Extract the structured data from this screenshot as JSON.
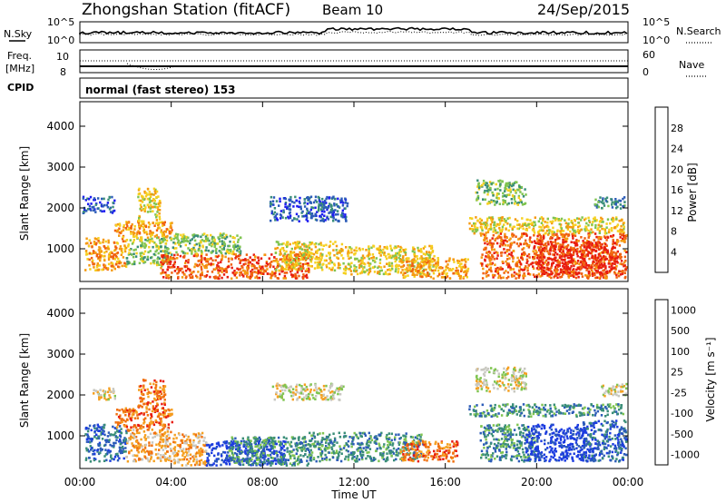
{
  "header": {
    "station": "Zhongshan Station (fitACF)",
    "beam": "Beam 10",
    "date": "24/Sep/2015",
    "cpid_label": "CPID",
    "cpid_text": "normal (fast stereo) 153"
  },
  "strips": {
    "nsky": {
      "left_label": "N.Sky",
      "right_label": "N.Search",
      "left_ticks": [
        "10^5",
        "10^0"
      ],
      "right_ticks": [
        "10^5",
        "10^0"
      ]
    },
    "freq": {
      "left_label_1": "Freq.",
      "left_label_2": "[MHz]",
      "right_label": "Nave",
      "left_ticks": [
        "10",
        "8"
      ],
      "right_ticks": [
        "60",
        "0"
      ]
    }
  },
  "chart_data": [
    {
      "type": "heatmap",
      "title": "",
      "xlabel": "Time UT",
      "ylabel": "Slant Range [km]",
      "x_ticks": [
        "00:00",
        "04:00",
        "08:00",
        "12:00",
        "16:00",
        "20:00",
        "00:00"
      ],
      "y_ticks": [
        "1000",
        "2000",
        "3000",
        "4000"
      ],
      "xlim": [
        0,
        24
      ],
      "ylim": [
        200,
        4600
      ],
      "colorbar": {
        "label": "Power [dB]",
        "ticks": [
          "4",
          "8",
          "12",
          "16",
          "20",
          "24",
          "28"
        ],
        "colors": [
          "#1c1cf0",
          "#2c5cb8",
          "#3a8e78",
          "#7fc450",
          "#f5d020",
          "#f59a10",
          "#f06010",
          "#e81c10"
        ]
      },
      "regions": [
        {
          "t0": 0.2,
          "t1": 2.0,
          "r0": 500,
          "r1": 1300,
          "c": 5
        },
        {
          "t0": 0.1,
          "t1": 1.5,
          "r0": 1900,
          "r1": 2300,
          "c": 1
        },
        {
          "t0": 1.5,
          "t1": 4.0,
          "r0": 1300,
          "r1": 1700,
          "c": 5
        },
        {
          "t0": 2.0,
          "t1": 4.0,
          "r0": 600,
          "r1": 1300,
          "c": 3
        },
        {
          "t0": 2.5,
          "t1": 3.5,
          "r0": 1700,
          "r1": 2500,
          "c": 4
        },
        {
          "t0": 3.5,
          "t1": 10.0,
          "r0": 300,
          "r1": 900,
          "c": 6
        },
        {
          "t0": 4.0,
          "t1": 7.0,
          "r0": 900,
          "r1": 1400,
          "c": 3
        },
        {
          "t0": 8.5,
          "t1": 11.5,
          "r0": 500,
          "r1": 1200,
          "c": 4
        },
        {
          "t0": 8.3,
          "t1": 11.7,
          "r0": 1700,
          "r1": 2300,
          "c": 1
        },
        {
          "t0": 11.5,
          "t1": 15.5,
          "r0": 400,
          "r1": 1100,
          "c": 4
        },
        {
          "t0": 14.0,
          "t1": 17.0,
          "r0": 300,
          "r1": 800,
          "c": 5
        },
        {
          "t0": 17.3,
          "t1": 19.5,
          "r0": 2100,
          "r1": 2700,
          "c": 3
        },
        {
          "t0": 17.0,
          "t1": 23.8,
          "r0": 1400,
          "r1": 1800,
          "c": 4
        },
        {
          "t0": 17.5,
          "t1": 23.9,
          "r0": 300,
          "r1": 1400,
          "c": 6
        },
        {
          "t0": 20.0,
          "t1": 23.5,
          "r0": 400,
          "r1": 1200,
          "c": 7
        },
        {
          "t0": 22.5,
          "t1": 23.9,
          "r0": 2000,
          "r1": 2300,
          "c": 2
        }
      ]
    },
    {
      "type": "heatmap",
      "title": "",
      "xlabel": "Time UT",
      "ylabel": "Slant Range [km]",
      "x_ticks": [
        "00:00",
        "04:00",
        "08:00",
        "12:00",
        "16:00",
        "20:00",
        "00:00"
      ],
      "y_ticks": [
        "1000",
        "2000",
        "3000",
        "4000"
      ],
      "xlim": [
        0,
        24
      ],
      "ylim": [
        200,
        4600
      ],
      "colorbar": {
        "label": "Velocity [m s⁻¹]",
        "ticks": [
          "1000",
          "500",
          "100",
          "25",
          "-25",
          "-100",
          "-500",
          "-1000"
        ],
        "colors": [
          "#1c3ce0",
          "#2c5cb8",
          "#3a8e78",
          "#7fc450",
          "#c8c8c0",
          "#f5a020",
          "#f07010",
          "#e81c10"
        ]
      },
      "regions": [
        {
          "t0": 0.2,
          "t1": 2.0,
          "r0": 400,
          "r1": 1300,
          "c": 1
        },
        {
          "t0": 0.5,
          "t1": 1.5,
          "r0": 1900,
          "r1": 2200,
          "c": 4
        },
        {
          "t0": 1.5,
          "t1": 4.0,
          "r0": 1200,
          "r1": 1700,
          "c": 6
        },
        {
          "t0": 2.0,
          "t1": 4.0,
          "r0": 400,
          "r1": 1200,
          "c": 5
        },
        {
          "t0": 2.5,
          "t1": 3.7,
          "r0": 1700,
          "r1": 2400,
          "c": 6
        },
        {
          "t0": 4.0,
          "t1": 5.5,
          "r0": 300,
          "r1": 1100,
          "c": 5
        },
        {
          "t0": 5.5,
          "t1": 9.0,
          "r0": 300,
          "r1": 900,
          "c": 0
        },
        {
          "t0": 6.5,
          "t1": 10.0,
          "r0": 300,
          "r1": 1000,
          "c": 2
        },
        {
          "t0": 8.4,
          "t1": 11.5,
          "r0": 1900,
          "r1": 2300,
          "c": 4
        },
        {
          "t0": 10.0,
          "t1": 15.0,
          "r0": 400,
          "r1": 1100,
          "c": 2
        },
        {
          "t0": 14.0,
          "t1": 16.5,
          "r0": 400,
          "r1": 900,
          "c": 6
        },
        {
          "t0": 17.3,
          "t1": 19.5,
          "r0": 2100,
          "r1": 2700,
          "c": 4
        },
        {
          "t0": 17.0,
          "t1": 23.8,
          "r0": 1500,
          "r1": 1800,
          "c": 2
        },
        {
          "t0": 17.5,
          "t1": 20.0,
          "r0": 400,
          "r1": 1300,
          "c": 2
        },
        {
          "t0": 19.5,
          "t1": 22.5,
          "r0": 400,
          "r1": 1300,
          "c": 0
        },
        {
          "t0": 22.0,
          "t1": 23.9,
          "r0": 400,
          "r1": 1400,
          "c": 1
        },
        {
          "t0": 22.8,
          "t1": 23.9,
          "r0": 2000,
          "r1": 2300,
          "c": 4
        }
      ]
    }
  ]
}
